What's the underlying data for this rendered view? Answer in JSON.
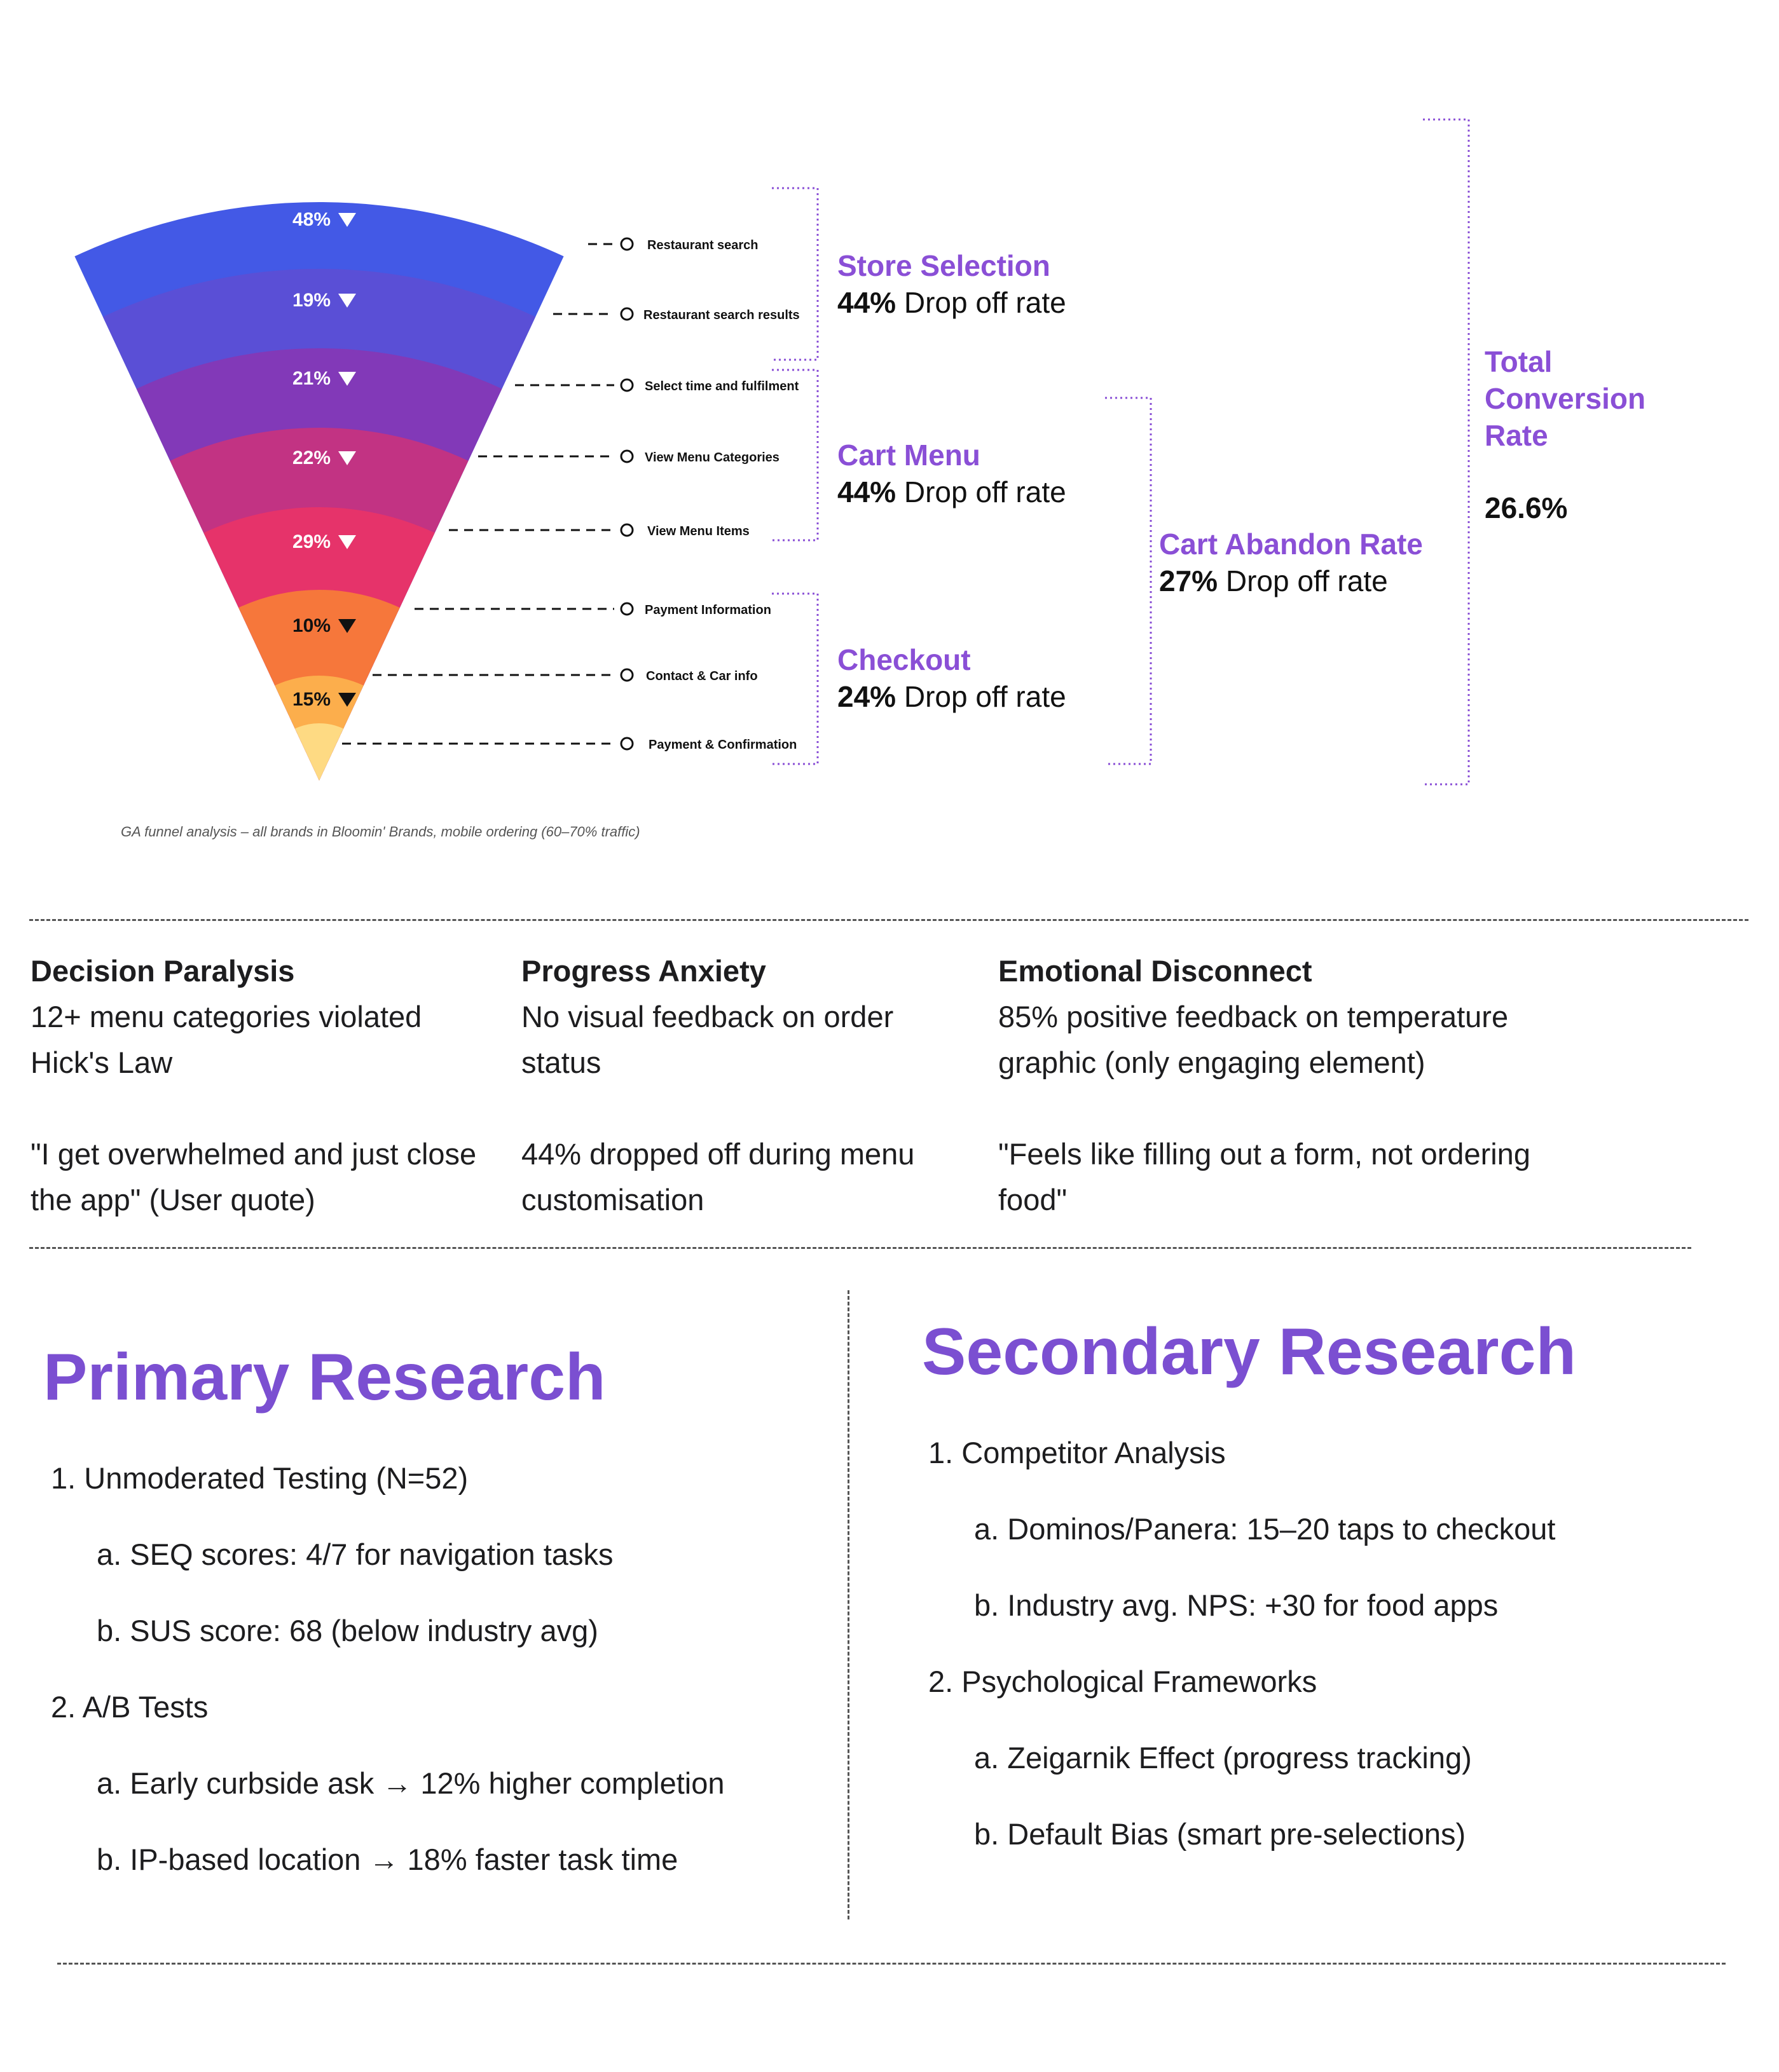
{
  "chart_data": {
    "type": "funnel",
    "stages": [
      {
        "label": "Restaurant search",
        "drop": "48%",
        "color": "#4359E6",
        "triangle": "#ffffff"
      },
      {
        "label": "Restaurant search results",
        "drop": "19%",
        "color": "#5A4FD6",
        "triangle": "#ffffff"
      },
      {
        "label": "Select time and fulfilment",
        "drop": "21%",
        "color": "#8239B8",
        "triangle": "#ffffff"
      },
      {
        "label": "View Menu Categories",
        "drop": "22%",
        "color": "#C23383",
        "triangle": "#ffffff"
      },
      {
        "label": "View Menu Items",
        "drop": "29%",
        "color": "#E6336A",
        "triangle": "#ffffff"
      },
      {
        "label": "Payment Information",
        "drop": "10%",
        "color": "#F6773B",
        "triangle": "#111111"
      },
      {
        "label": "Contact & Car info",
        "drop": "15%",
        "color": "#FCAE4C",
        "triangle": "#111111"
      },
      {
        "label": "Payment & Confirmation",
        "drop": "",
        "color": "#FEDA83",
        "triangle": "#111111"
      }
    ],
    "groups": [
      {
        "title": "Store Selection",
        "rate": "44%",
        "rate_suffix": "Drop off rate"
      },
      {
        "title": "Cart Menu",
        "rate": "44%",
        "rate_suffix": "Drop off rate"
      },
      {
        "title": "Checkout",
        "rate": "24%",
        "rate_suffix": "Drop off rate"
      },
      {
        "title": "Cart Abandon Rate",
        "rate": "27%",
        "rate_suffix": "Drop off rate"
      }
    ],
    "total": {
      "title_lines": [
        "Total",
        "Conversion",
        "Rate"
      ],
      "value": "26.6%"
    },
    "caption": "GA funnel analysis – all brands in Bloomin' Brands, mobile ordering (60–70% traffic)"
  },
  "insights": [
    {
      "title": "Decision Paralysis",
      "body": "12+ menu categories violated Hick's Law",
      "quote": "\"I get overwhelmed and just close the app\" (User quote)"
    },
    {
      "title": "Progress Anxiety",
      "body": "No visual feedback on order status",
      "quote": "44% dropped off during menu customisation"
    },
    {
      "title": "Emotional Disconnect",
      "body": "85% positive feedback on temperature graphic (only engaging element)",
      "quote": "\"Feels like filling out a form, not ordering food\""
    }
  ],
  "primary": {
    "title": "Primary Research",
    "items": [
      {
        "text": "1.  Unmoderated Testing (N=52)",
        "level": 0
      },
      {
        "text": "a.  SEQ scores: 4/7 for navigation tasks",
        "level": 1
      },
      {
        "text": "b.  SUS score: 68 (below industry avg)",
        "level": 1
      },
      {
        "text": "2.  A/B Tests",
        "level": 0
      },
      {
        "text": "a.  Early curbside ask → 12% higher completion",
        "level": 1
      },
      {
        "text": "b.  IP-based location → 18% faster task time",
        "level": 1
      }
    ]
  },
  "secondary": {
    "title": "Secondary Research",
    "items": [
      {
        "text": "1.  Competitor Analysis",
        "level": 0
      },
      {
        "text": "a.  Dominos/Panera: 15–20 taps to checkout",
        "level": 1
      },
      {
        "text": "b.  Industry avg. NPS: +30 for food apps",
        "level": 1
      },
      {
        "text": "2.  Psychological Frameworks",
        "level": 0
      },
      {
        "text": "a.  Zeigarnik Effect (progress tracking)",
        "level": 1
      },
      {
        "text": "b.  Default Bias (smart pre-selections)",
        "level": 1
      }
    ]
  }
}
